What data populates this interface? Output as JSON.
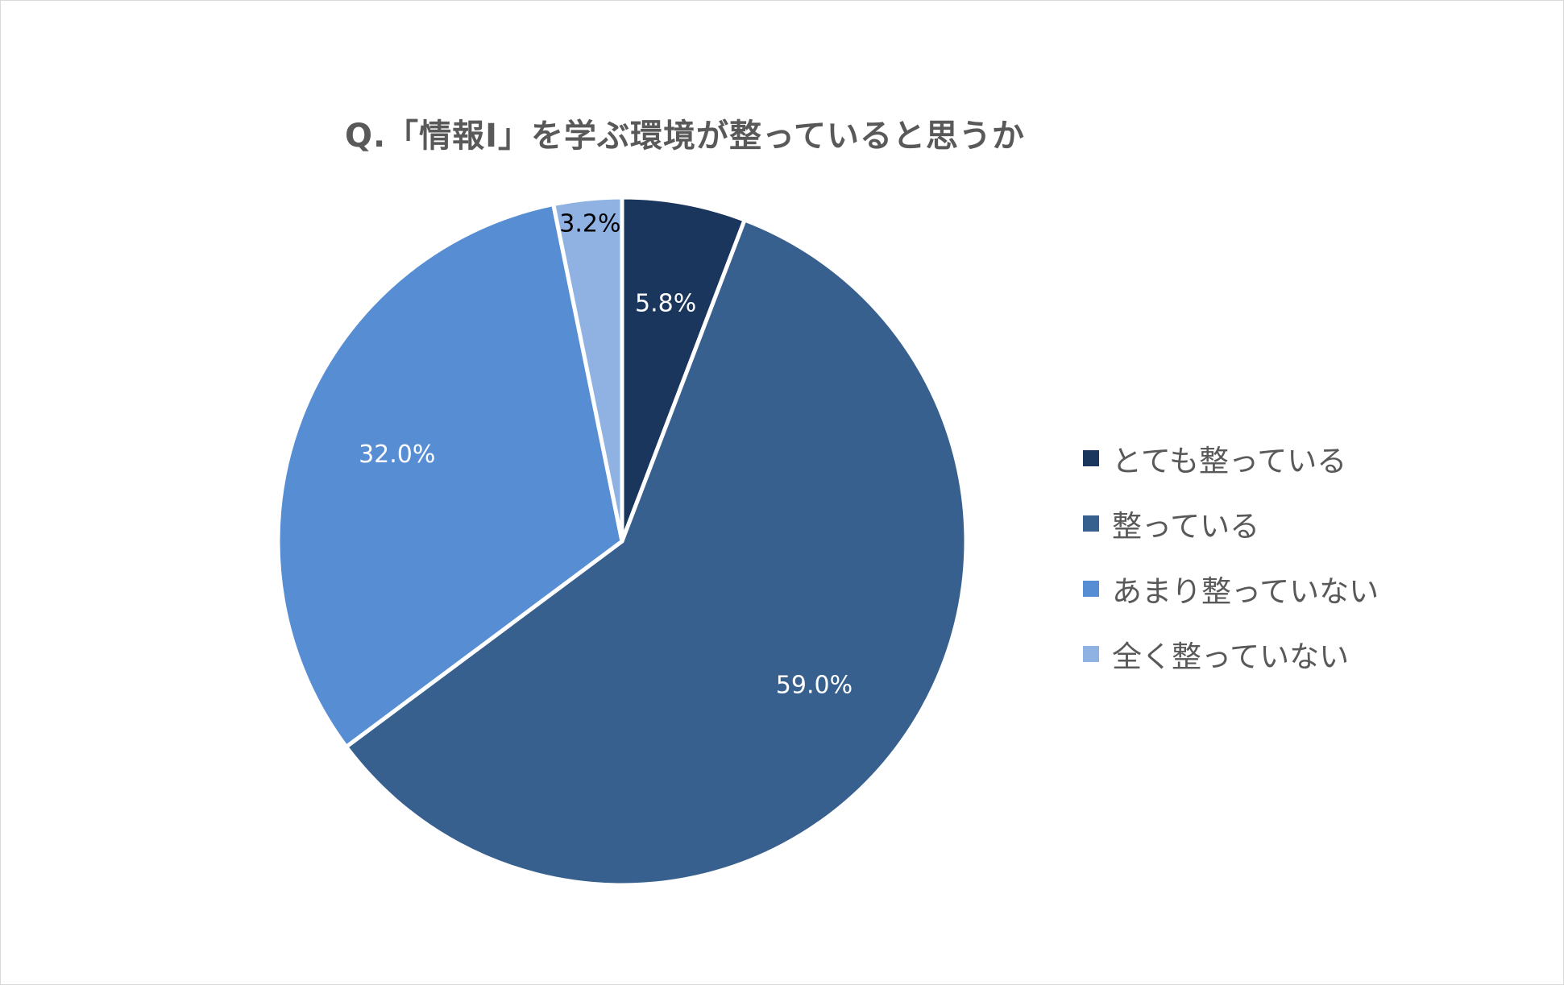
{
  "chart_data": {
    "type": "pie",
    "title": "Q.「情報Ⅰ」を学ぶ環境が整っていると思うか",
    "categories": [
      "とても整っている",
      "整っている",
      "あまり整っていない",
      "全く整っていない"
    ],
    "values": [
      5.8,
      59.0,
      32.0,
      3.2
    ],
    "labels": [
      "5.8%",
      "59.0%",
      "32.0%",
      "3.2%"
    ],
    "colors": [
      "#1b365d",
      "#37608f",
      "#568dd3",
      "#8fb2e3"
    ],
    "label_colors": [
      "#ffffff",
      "#ffffff",
      "#ffffff",
      "#000000"
    ],
    "start_angle_deg": 0,
    "direction": "clockwise",
    "legend_position": "right"
  }
}
